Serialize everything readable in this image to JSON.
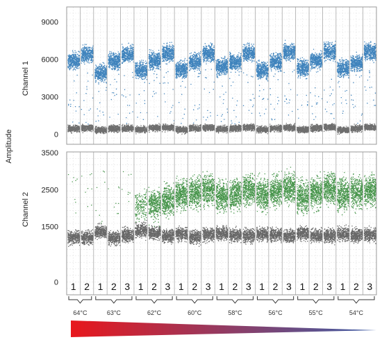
{
  "chart_data": {
    "type": "scatter",
    "ylabel_shared": "Amplitude",
    "panels": [
      {
        "ylabel": "Channel 1",
        "yticks": [
          0,
          3000,
          6000,
          9000
        ],
        "ylim": [
          -800,
          10200
        ],
        "series": [
          {
            "color": "#1f6fb2",
            "centers": [
              5900,
              6400,
              4900,
              5900,
              6400,
              5100,
              5900,
              6500,
              5200,
              5800,
              6500,
              5400,
              5800,
              6500,
              5100,
              5800,
              6600,
              5300,
              5900,
              6600,
              5300,
              5700,
              6600
            ]
          },
          {
            "color": "#555555",
            "centers": [
              450,
              500,
              330,
              450,
              480,
              380,
              500,
              540,
              360,
              480,
              520,
              420,
              480,
              540,
              380,
              480,
              520,
              380,
              480,
              560,
              340,
              460,
              560
            ]
          }
        ],
        "grid": true
      },
      {
        "ylabel": "Channel 2",
        "yticks": [
          0,
          1500,
          2500,
          3500
        ],
        "ylim": [
          -350,
          3520
        ],
        "series": [
          {
            "color": "#4d4d4d",
            "centers": [
              1200,
              1200,
              1360,
              1200,
              1270,
              1400,
              1330,
              1230,
              1300,
              1210,
              1290,
              1310,
              1260,
              1250,
              1300,
              1270,
              1230,
              1310,
              1250,
              1250,
              1290,
              1260,
              1270
            ]
          },
          {
            "color": "#27832c",
            "centers": [
              null,
              null,
              null,
              null,
              null,
              2040,
              2080,
              2200,
              2360,
              2420,
              2500,
              2300,
              2380,
              2480,
              2370,
              2450,
              2560,
              2300,
              2430,
              2540,
              2380,
              2420,
              2470
            ]
          }
        ],
        "grid": true
      }
    ],
    "columns": [
      "1",
      "2",
      "1",
      "2",
      "3",
      "1",
      "2",
      "3",
      "1",
      "2",
      "3",
      "1",
      "2",
      "3",
      "1",
      "2",
      "3",
      "1",
      "2",
      "3",
      "1",
      "2",
      "3"
    ],
    "groups": [
      {
        "label": "64°C",
        "start": 0,
        "count": 2
      },
      {
        "label": "63°C",
        "start": 2,
        "count": 3
      },
      {
        "label": "62°C",
        "start": 5,
        "count": 3
      },
      {
        "label": "60°C",
        "start": 8,
        "count": 3
      },
      {
        "label": "58°C",
        "start": 11,
        "count": 3
      },
      {
        "label": "56°C",
        "start": 14,
        "count": 3
      },
      {
        "label": "55°C",
        "start": 17,
        "count": 3
      },
      {
        "label": "54°C",
        "start": 20,
        "count": 3
      }
    ],
    "gradient_colors": [
      "#e8171c",
      "#3d5fa8"
    ]
  }
}
